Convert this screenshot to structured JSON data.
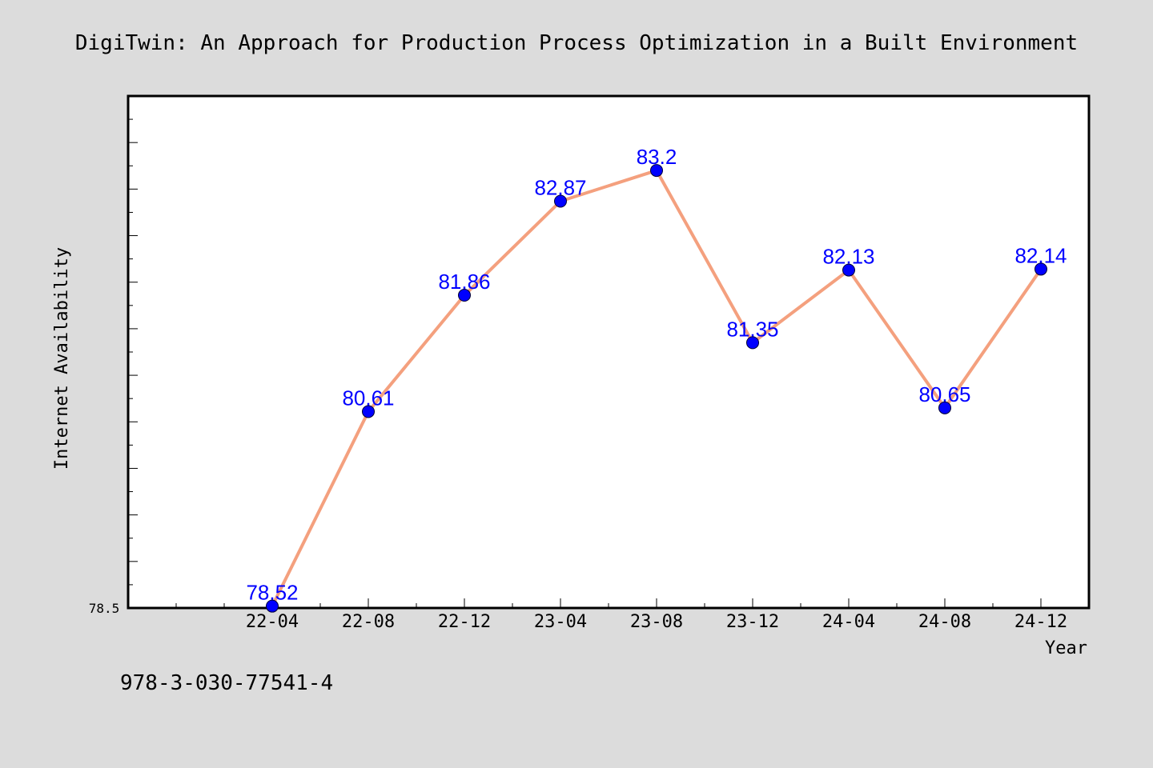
{
  "chart_data": {
    "type": "line",
    "title": "DigiTwin: An Approach for Production Process Optimization in a Built Environment",
    "xlabel": "Year",
    "ylabel": "Internet Availability",
    "categories": [
      "22-04",
      "22-08",
      "22-12",
      "23-04",
      "23-08",
      "23-12",
      "24-04",
      "24-08",
      "24-12"
    ],
    "values": [
      78.52,
      80.61,
      81.86,
      82.87,
      83.2,
      81.35,
      82.13,
      80.65,
      82.14
    ],
    "data_labels": [
      "78.52",
      "80.61",
      "81.86",
      "82.87",
      "83.2",
      "81.35",
      "82.13",
      "80.65",
      "82.14"
    ],
    "yticks_labeled": [
      "78.5"
    ],
    "ylim": [
      78.5,
      84.0
    ],
    "grid": false,
    "legend": "none",
    "colors": {
      "line": "#f4a07e",
      "marker": "#0000ff",
      "label": "#0000ff",
      "background": "#dcdcdc",
      "plot_bg": "#ffffff"
    }
  },
  "footer_text": "978-3-030-77541-4"
}
